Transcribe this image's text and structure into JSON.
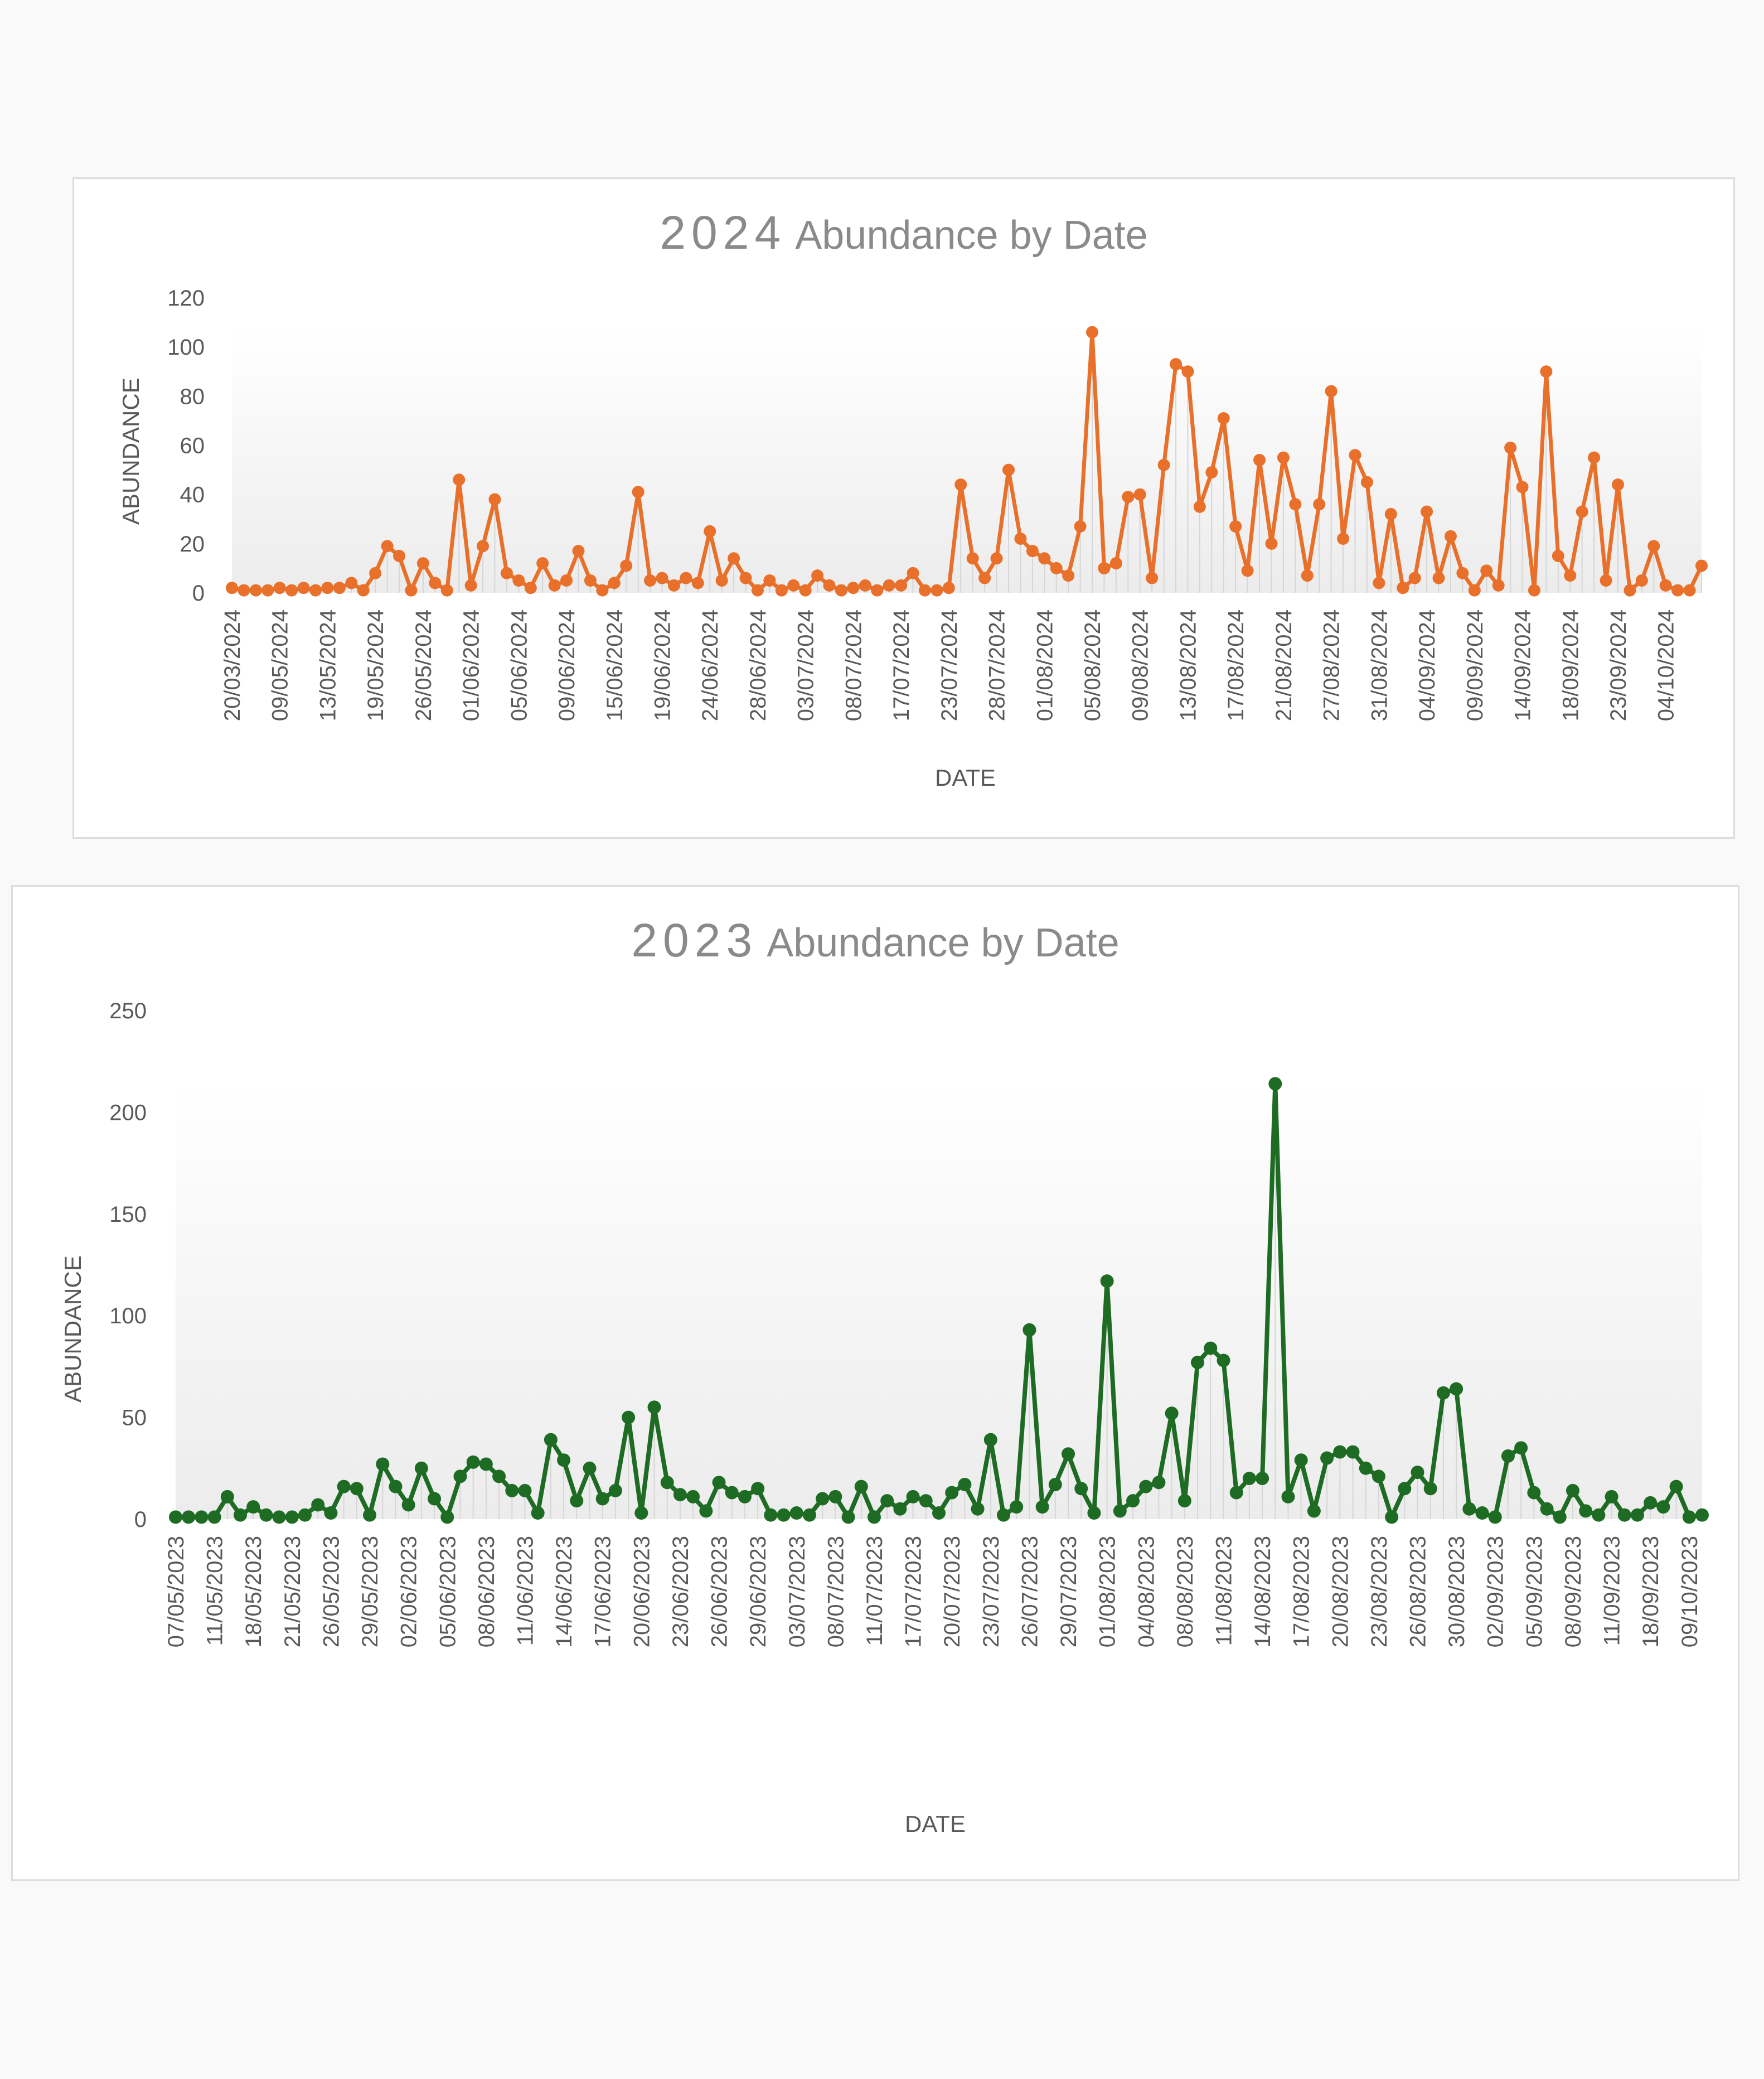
{
  "chart_data": [
    {
      "type": "line",
      "title_year": "2024",
      "title_text": "Abundance by Date",
      "xlabel": "DATE",
      "ylabel": "ABUNDANCE",
      "ylim": [
        0,
        120
      ],
      "yticks": [
        0,
        20,
        40,
        60,
        80,
        100,
        120
      ],
      "color": "#E8702A",
      "grid": false,
      "x_tick_labels": [
        "20/03/2024",
        "09/05/2024",
        "13/05/2024",
        "19/05/2024",
        "26/05/2024",
        "01/06/2024",
        "05/06/2024",
        "09/06/2024",
        "15/06/2024",
        "19/06/2024",
        "24/06/2024",
        "28/06/2024",
        "03/07/2024",
        "08/07/2024",
        "17/07/2024",
        "23/07/2024",
        "28/07/2024",
        "01/08/2024",
        "05/08/2024",
        "09/08/2024",
        "13/08/2024",
        "17/08/2024",
        "21/08/2024",
        "27/08/2024",
        "31/08/2024",
        "04/09/2024",
        "09/09/2024",
        "14/09/2024",
        "18/09/2024",
        "23/09/2024",
        "04/10/2024"
      ],
      "tick_every": 4,
      "values": [
        2,
        1,
        1,
        1,
        2,
        1,
        2,
        1,
        2,
        2,
        4,
        1,
        8,
        19,
        15,
        1,
        12,
        4,
        1,
        46,
        3,
        19,
        38,
        8,
        5,
        2,
        12,
        3,
        5,
        17,
        5,
        1,
        4,
        11,
        41,
        5,
        6,
        3,
        6,
        4,
        25,
        5,
        14,
        6,
        1,
        5,
        1,
        3,
        1,
        7,
        3,
        1,
        2,
        3,
        1,
        3,
        3,
        8,
        1,
        1,
        2,
        44,
        14,
        6,
        14,
        50,
        22,
        17,
        14,
        10,
        7,
        27,
        106,
        10,
        12,
        39,
        40,
        6,
        52,
        93,
        90,
        35,
        49,
        71,
        27,
        9,
        54,
        20,
        55,
        36,
        7,
        36,
        82,
        22,
        56,
        45,
        4,
        32,
        2,
        6,
        33,
        6,
        23,
        8,
        1,
        9,
        3,
        59,
        43,
        1,
        90,
        15,
        7,
        33,
        55,
        5,
        44,
        1,
        5,
        19,
        3,
        1,
        1,
        11
      ]
    },
    {
      "type": "line",
      "title_year": "2023",
      "title_text": "Abundance by Date",
      "xlabel": "DATE",
      "ylabel": "ABUNDANCE",
      "ylim": [
        0,
        250
      ],
      "yticks": [
        0,
        50,
        100,
        150,
        200,
        250
      ],
      "color": "#1E6B24",
      "grid": false,
      "x_tick_labels": [
        "07/05/2023",
        "11/05/2023",
        "18/05/2023",
        "21/05/2023",
        "26/05/2023",
        "29/05/2023",
        "02/06/2023",
        "05/06/2023",
        "08/06/2023",
        "11/06/2023",
        "14/06/2023",
        "17/06/2023",
        "20/06/2023",
        "23/06/2023",
        "26/06/2023",
        "29/06/2023",
        "03/07/2023",
        "08/07/2023",
        "11/07/2023",
        "17/07/2023",
        "20/07/2023",
        "23/07/2023",
        "26/07/2023",
        "29/07/2023",
        "01/08/2023",
        "04/08/2023",
        "08/08/2023",
        "11/08/2023",
        "14/08/2023",
        "17/08/2023",
        "20/08/2023",
        "23/08/2023",
        "26/08/2023",
        "30/08/2023",
        "02/09/2023",
        "05/09/2023",
        "08/09/2023",
        "11/09/2023",
        "18/09/2023",
        "09/10/2023"
      ],
      "tick_every": 3,
      "values": [
        1,
        1,
        1,
        1,
        11,
        2,
        6,
        2,
        1,
        1,
        2,
        7,
        3,
        16,
        15,
        2,
        27,
        16,
        7,
        25,
        10,
        1,
        21,
        28,
        27,
        21,
        14,
        14,
        3,
        39,
        29,
        9,
        25,
        10,
        14,
        50,
        3,
        55,
        18,
        12,
        11,
        4,
        18,
        13,
        11,
        15,
        2,
        2,
        3,
        2,
        10,
        11,
        1,
        16,
        1,
        9,
        5,
        11,
        9,
        3,
        13,
        17,
        5,
        39,
        2,
        6,
        93,
        6,
        17,
        32,
        15,
        3,
        117,
        4,
        9,
        16,
        18,
        52,
        9,
        77,
        84,
        78,
        13,
        20,
        20,
        214,
        11,
        29,
        4,
        30,
        33,
        33,
        25,
        21,
        1,
        15,
        23,
        15,
        62,
        64,
        5,
        3,
        1,
        31,
        35,
        13,
        5,
        1,
        14,
        4,
        2,
        11,
        2,
        2,
        8,
        6,
        16,
        1,
        2
      ]
    }
  ]
}
